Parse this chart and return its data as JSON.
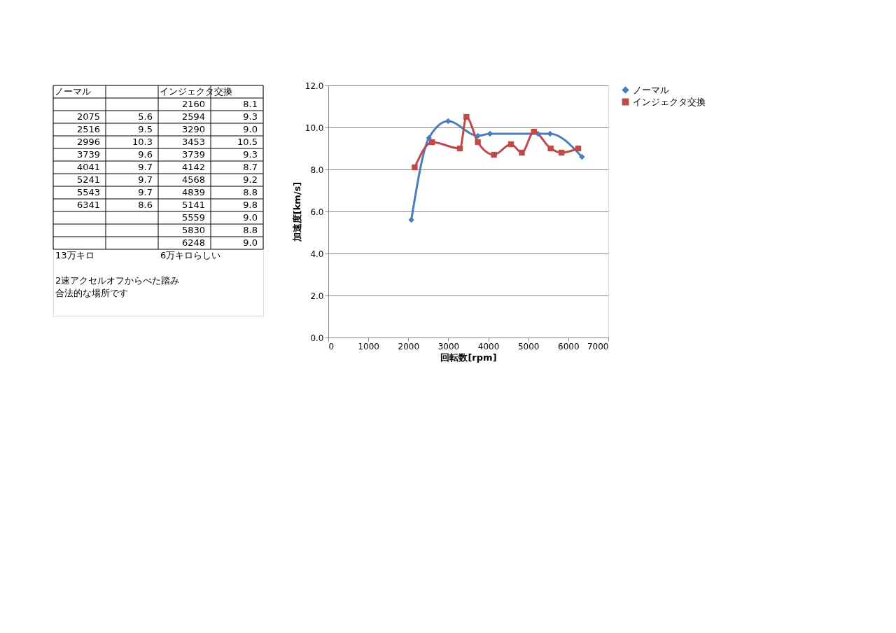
{
  "chart_data": [
    {
      "type": "other",
      "annotations": [
        "ノーマル",
        "インジェクタ交換",
        "2160",
        "8.1",
        "2075",
        "5.6",
        "2594",
        "9.3",
        "2516",
        "9.5",
        "3290",
        "9.0",
        "2996",
        "10.3",
        "3453",
        "10.5",
        "3739",
        "9.6",
        "3739",
        "9.3",
        "4041",
        "9.7",
        "4142",
        "8.7",
        "5241",
        "9.7",
        "4568",
        "9.2",
        "5543",
        "9.7",
        "4839",
        "8.8",
        "6341",
        "8.6",
        "5141",
        "9.8",
        "5559",
        "9.0",
        "5830",
        "8.8",
        "6248",
        "9.0",
        "13万キロ",
        "6万キロらしい",
        "2速アクセルオフからべた踏み",
        "合法的な場所です"
      ]
    },
    {
      "type": "line",
      "xlabel": "回転数[rpm]",
      "ylabel": "加速度[km/s]",
      "xlim": [
        0,
        7000
      ],
      "xticks": [
        0,
        1000,
        2000,
        3000,
        4000,
        5000,
        6000,
        7000
      ],
      "ylim": [
        0,
        12
      ],
      "yticks": [
        {
          "value": 0,
          "label": "0.0"
        },
        {
          "value": 2,
          "label": "2.0"
        },
        {
          "value": 4,
          "label": "4.0"
        },
        {
          "value": 6,
          "label": "6.0"
        },
        {
          "value": 8,
          "label": "8.0"
        },
        {
          "value": 10,
          "label": "10.0"
        },
        {
          "value": 12,
          "label": "12.0"
        }
      ],
      "grid": "y",
      "legend": "right",
      "series": [
        {
          "name": "ノーマル",
          "color": "#4a7ebb",
          "marker": "diamond",
          "x": [
            2075,
            2516,
            2996,
            3739,
            4041,
            5241,
            5543,
            6341
          ],
          "values": [
            5.6,
            9.5,
            10.3,
            9.6,
            9.7,
            9.7,
            9.7,
            8.6
          ]
        },
        {
          "name": "インジェクタ交換",
          "color": "#be4b48",
          "marker": "square",
          "x": [
            2160,
            2594,
            3290,
            3453,
            3739,
            4142,
            4568,
            4839,
            5141,
            5559,
            5830,
            6248
          ],
          "values": [
            8.1,
            9.3,
            9.0,
            10.5,
            9.3,
            8.7,
            9.2,
            8.8,
            9.8,
            9.0,
            8.8,
            9.0
          ]
        }
      ]
    }
  ]
}
